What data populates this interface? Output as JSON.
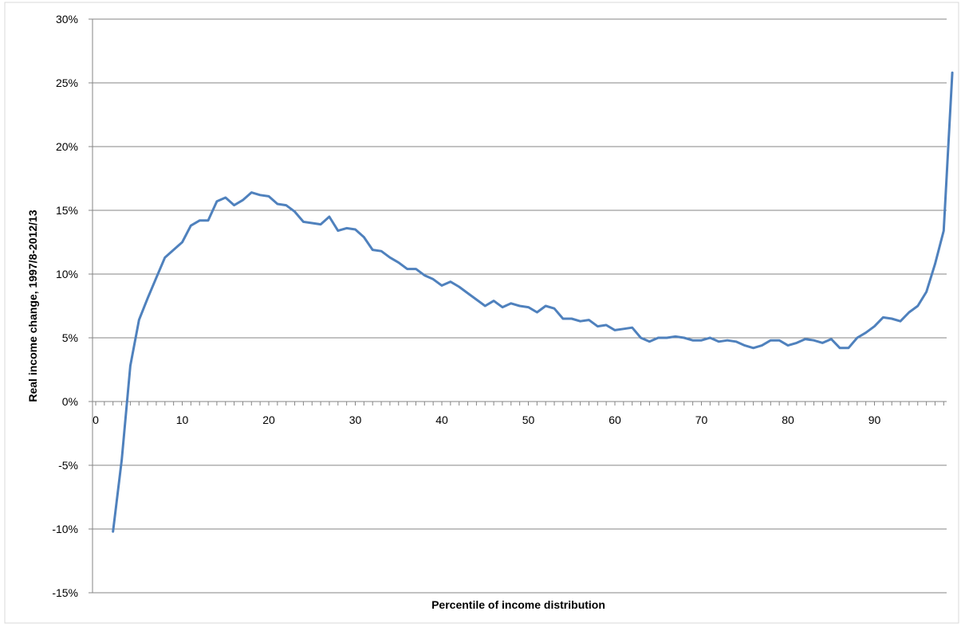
{
  "chart_data": {
    "type": "line",
    "title": "",
    "xlabel": "Percentile of income distribution",
    "ylabel": "Real income change, 1997/8-2012/13",
    "xlim": [
      0,
      99
    ],
    "ylim": [
      -15,
      30
    ],
    "y_ticks": [
      -15,
      -10,
      -5,
      0,
      5,
      10,
      15,
      20,
      25,
      30
    ],
    "y_tick_labels": [
      "-15%",
      "-10%",
      "-5%",
      "0%",
      "5%",
      "10%",
      "15%",
      "20%",
      "25%",
      "30%"
    ],
    "x_ticks": [
      0,
      10,
      20,
      30,
      40,
      50,
      60,
      70,
      80,
      90
    ],
    "x_tick_labels": [
      "0",
      "10",
      "20",
      "30",
      "40",
      "50",
      "60",
      "70",
      "80",
      "90"
    ],
    "grid": "horizontal",
    "legend": "none",
    "line_color": "#4f81bd",
    "series": [
      {
        "x": [
          2,
          3,
          4,
          5,
          6,
          7,
          8,
          9,
          10,
          11,
          12,
          13,
          14,
          15,
          16,
          17,
          18,
          19,
          20,
          21,
          22,
          23,
          24,
          25,
          26,
          27,
          28,
          29,
          30,
          31,
          32,
          33,
          34,
          35,
          36,
          37,
          38,
          39,
          40,
          41,
          42,
          43,
          44,
          45,
          46,
          47,
          48,
          49,
          50,
          51,
          52,
          53,
          54,
          55,
          56,
          57,
          58,
          59,
          60,
          61,
          62,
          63,
          64,
          65,
          66,
          67,
          68,
          69,
          70,
          71,
          72,
          73,
          74,
          75,
          76,
          77,
          78,
          79,
          80,
          81,
          82,
          83,
          84,
          85,
          86,
          87,
          88,
          89,
          90,
          91,
          92,
          93,
          94,
          95,
          96,
          97,
          98,
          99
        ],
        "values": [
          -10.2,
          -4.6,
          2.8,
          6.4,
          8.1,
          9.7,
          11.3,
          11.9,
          12.5,
          13.8,
          14.2,
          14.2,
          15.7,
          16.0,
          15.4,
          15.8,
          16.4,
          16.2,
          16.1,
          15.5,
          15.4,
          14.9,
          14.1,
          14.0,
          13.9,
          14.5,
          13.4,
          13.6,
          13.5,
          12.9,
          11.9,
          11.8,
          11.3,
          10.9,
          10.4,
          10.4,
          9.9,
          9.6,
          9.1,
          9.4,
          9.0,
          8.5,
          8.0,
          7.5,
          7.9,
          7.4,
          7.7,
          7.5,
          7.4,
          7.0,
          7.5,
          7.3,
          6.5,
          6.5,
          6.3,
          6.4,
          5.9,
          6.0,
          5.6,
          5.7,
          5.8,
          5.0,
          4.7,
          5.0,
          5.0,
          5.1,
          5.0,
          4.8,
          4.8,
          5.0,
          4.7,
          4.8,
          4.7,
          4.4,
          4.2,
          4.4,
          4.8,
          4.8,
          4.4,
          4.6,
          4.9,
          4.8,
          4.6,
          4.9,
          4.2,
          4.2,
          5.0,
          5.4,
          5.9,
          6.6,
          6.5,
          6.3,
          7.0,
          7.5,
          8.6,
          10.8,
          13.4,
          25.8
        ]
      }
    ]
  }
}
